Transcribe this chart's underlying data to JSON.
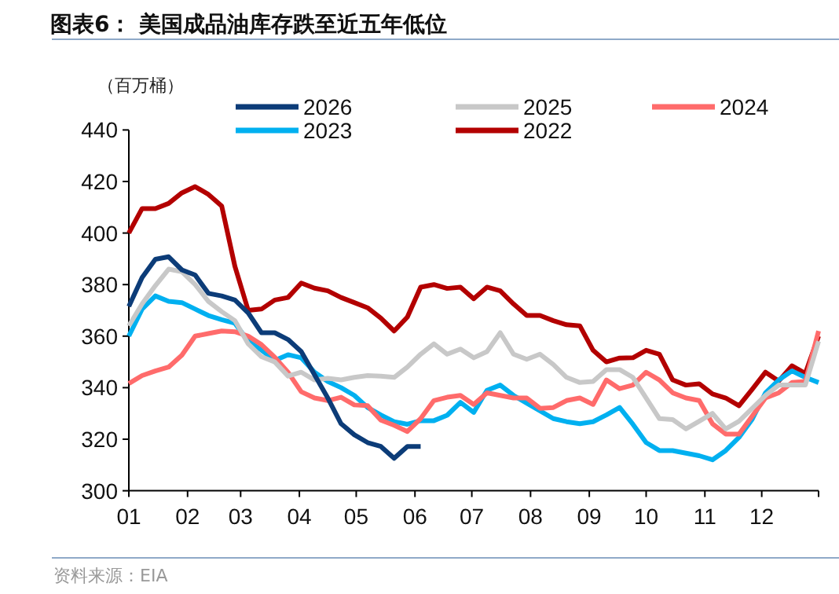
{
  "chart_data": {
    "type": "line",
    "title": "图表6：  美国成品油库存跌至近五年低位",
    "ylabel": "（百万桶）",
    "annotations": [
      "资料来源：EIA"
    ],
    "x": [
      "--01-01",
      "--01-08",
      "--01-15",
      "--01-22",
      "--01-29",
      "--02-05",
      "--02-12",
      "--02-19",
      "--02-26",
      "--03-05",
      "--03-12",
      "--03-19",
      "--03-26",
      "--04-02",
      "--04-09",
      "--04-16",
      "--04-23",
      "--04-30",
      "--05-07",
      "--05-14",
      "--05-21",
      "--05-28",
      "--06-04",
      "--06-11",
      "--06-18",
      "--06-25",
      "--07-02",
      "--07-09",
      "--07-16",
      "--07-23",
      "--07-30",
      "--08-06",
      "--08-13",
      "--08-20",
      "--08-27",
      "--09-03",
      "--09-10",
      "--09-17",
      "--09-24",
      "--10-01",
      "--10-08",
      "--10-15",
      "--10-22",
      "--10-29",
      "--11-05",
      "--11-12",
      "--11-19",
      "--11-26",
      "--12-03",
      "--12-10",
      "--12-17",
      "--12-24",
      "--12-31"
    ],
    "xlim": [
      "--01-01",
      "--12-31"
    ],
    "xticks": [
      {
        "value": "--01-01",
        "label": "01"
      },
      {
        "value": "--02-01",
        "label": "02"
      },
      {
        "value": "--03-01",
        "label": "03"
      },
      {
        "value": "--04-01",
        "label": "04"
      },
      {
        "value": "--05-01",
        "label": "05"
      },
      {
        "value": "--06-01",
        "label": "06"
      },
      {
        "value": "--07-01",
        "label": "07"
      },
      {
        "value": "--08-01",
        "label": "08"
      },
      {
        "value": "--09-01",
        "label": "09"
      },
      {
        "value": "--10-01",
        "label": "10"
      },
      {
        "value": "--11-01",
        "label": "11"
      },
      {
        "value": "--12-01",
        "label": "12"
      },
      {
        "value": "--12-31",
        "label": null
      }
    ],
    "ylim": [
      300,
      440
    ],
    "yticks": [
      300,
      320,
      340,
      360,
      380,
      400,
      420,
      440
    ],
    "legend": "top",
    "series": [
      {
        "name": "2026",
        "color": "#0c3c78",
        "x": [
          "--01-01",
          "--01-08",
          "--01-15",
          "--01-22",
          "--01-29",
          "--02-05",
          "--02-12",
          "--02-19",
          "--02-26",
          "--03-05",
          "--03-12",
          "--03-19",
          "--03-26",
          "--04-02",
          "--04-09",
          "--04-16",
          "--04-23",
          "--04-30",
          "--05-07",
          "--05-14",
          "--05-21",
          "--05-28",
          "--06-04"
        ],
        "values": [
          371.5,
          382.7,
          389.8,
          390.8,
          385.7,
          383.7,
          376.6,
          375.6,
          374,
          369,
          361.3,
          361.3,
          358.7,
          354,
          345,
          336,
          326,
          321.7,
          318.7,
          317.2,
          312.6,
          317.2,
          317.2
        ]
      },
      {
        "name": "2025",
        "color": "#c8c8c8",
        "values": [
          364,
          372.5,
          379.6,
          386,
          385,
          380,
          373.5,
          369.5,
          366,
          357,
          352,
          350,
          344.5,
          346,
          343,
          343.6,
          343,
          344,
          344.7,
          344.5,
          344,
          348,
          353,
          357,
          353,
          355,
          351.6,
          354,
          361.3,
          353,
          351,
          353,
          349,
          344,
          342,
          342.4,
          347,
          347,
          344,
          336,
          328,
          327.6,
          324,
          327,
          330,
          324,
          327,
          332,
          337,
          341,
          341,
          341,
          358
        ]
      },
      {
        "name": "2024",
        "color": "#ff6b6b",
        "values": [
          341.6,
          344.7,
          346.5,
          348,
          352.6,
          360,
          361,
          362,
          361.7,
          360,
          356.7,
          351.8,
          346,
          338.4,
          336,
          335,
          336.3,
          333.3,
          333,
          327.4,
          325.4,
          323,
          328,
          335,
          336.3,
          337,
          333.5,
          338,
          337,
          336,
          336,
          332,
          332.3,
          335,
          336,
          333.5,
          343,
          339.6,
          341,
          346,
          343,
          338,
          336,
          335,
          326,
          322,
          322,
          329,
          336,
          338,
          342,
          342.4,
          362
        ]
      },
      {
        "name": "2023",
        "color": "#00b0f0",
        "values": [
          360,
          370.5,
          375.6,
          373.5,
          373,
          370.5,
          368,
          366.4,
          365,
          358,
          354.6,
          350.6,
          352.8,
          351.6,
          346,
          342.4,
          340,
          337,
          332.3,
          329.4,
          326.8,
          325.8,
          327.2,
          327.2,
          329.3,
          334.3,
          330.4,
          339,
          341,
          337,
          334,
          331,
          328,
          326.8,
          326,
          326.8,
          329.4,
          332.3,
          325.8,
          318.7,
          315.6,
          315.6,
          314.6,
          313.6,
          312,
          315.6,
          320.7,
          327.8,
          338,
          343,
          346.5,
          344,
          342
        ]
      },
      {
        "name": "2022",
        "color": "#b30000",
        "values": [
          400,
          409.5,
          409.5,
          411.5,
          415.6,
          418,
          415,
          410.5,
          387,
          370,
          370.5,
          374,
          375,
          380.6,
          378.6,
          377.6,
          375,
          373,
          371,
          367,
          362,
          367.4,
          379,
          380,
          378.5,
          379,
          374.5,
          379,
          377.6,
          372.5,
          368,
          368,
          366,
          364.4,
          364,
          354.5,
          350,
          351.5,
          351.6,
          354.5,
          353,
          343,
          341,
          341.5,
          337.6,
          336,
          333,
          339.4,
          346,
          342.6,
          348.5,
          345.5,
          360
        ]
      }
    ]
  }
}
